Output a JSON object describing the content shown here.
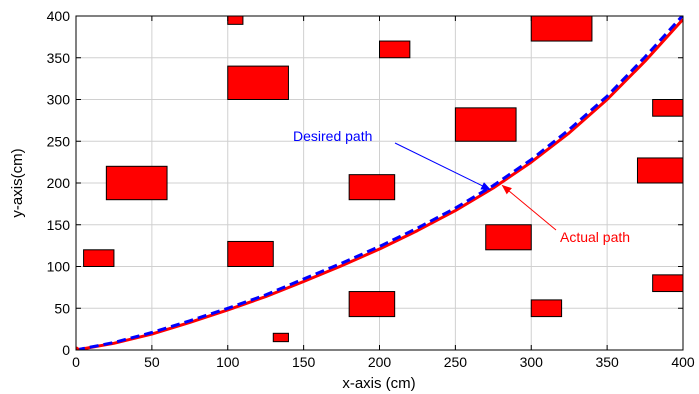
{
  "chart_data": {
    "type": "line",
    "title": "",
    "xlabel": "x-axis (cm)",
    "ylabel": "y-axis(cm)",
    "xlim": [
      0,
      400
    ],
    "ylim": [
      0,
      400
    ],
    "grid": true,
    "xticks": [
      0,
      50,
      100,
      150,
      200,
      250,
      300,
      350,
      400
    ],
    "yticks": [
      0,
      50,
      100,
      150,
      200,
      250,
      300,
      350,
      400
    ],
    "xtick_labels": [
      "0",
      "50",
      "100",
      "150",
      "200",
      "250",
      "300",
      "350",
      "400"
    ],
    "ytick_labels": [
      "0",
      "50",
      "100",
      "150",
      "200",
      "250",
      "300",
      "350",
      "400"
    ],
    "series": [
      {
        "name": "Desired path",
        "color": "#0000ff",
        "style": "dashed",
        "x": [
          0,
          25,
          50,
          75,
          100,
          125,
          150,
          175,
          200,
          225,
          250,
          275,
          300,
          325,
          350,
          375,
          400
        ],
        "y": [
          0,
          9,
          21,
          35,
          50,
          66,
          85,
          104,
          124,
          146,
          170,
          197,
          228,
          264,
          304,
          351,
          401
        ]
      },
      {
        "name": "Actual path",
        "color": "#ff0000",
        "style": "solid",
        "x": [
          0,
          25,
          50,
          75,
          100,
          125,
          150,
          175,
          200,
          225,
          250,
          275,
          300,
          325,
          350,
          375,
          400
        ],
        "y": [
          0,
          8,
          19,
          33,
          48,
          64,
          82,
          101,
          121,
          143,
          167,
          194,
          225,
          260,
          300,
          346,
          396
        ]
      }
    ],
    "obstacles": [
      {
        "x": [
          100,
          110
        ],
        "y": [
          390,
          400
        ]
      },
      {
        "x": [
          300,
          340
        ],
        "y": [
          370,
          400
        ]
      },
      {
        "x": [
          200,
          220
        ],
        "y": [
          350,
          370
        ]
      },
      {
        "x": [
          100,
          140
        ],
        "y": [
          300,
          340
        ]
      },
      {
        "x": [
          380,
          400
        ],
        "y": [
          280,
          300
        ]
      },
      {
        "x": [
          250,
          290
        ],
        "y": [
          250,
          290
        ]
      },
      {
        "x": [
          20,
          60
        ],
        "y": [
          180,
          220
        ]
      },
      {
        "x": [
          180,
          210
        ],
        "y": [
          180,
          210
        ]
      },
      {
        "x": [
          370,
          400
        ],
        "y": [
          200,
          230
        ]
      },
      {
        "x": [
          270,
          300
        ],
        "y": [
          120,
          150
        ]
      },
      {
        "x": [
          5,
          25
        ],
        "y": [
          100,
          120
        ]
      },
      {
        "x": [
          100,
          130
        ],
        "y": [
          100,
          130
        ]
      },
      {
        "x": [
          380,
          400
        ],
        "y": [
          70,
          90
        ]
      },
      {
        "x": [
          180,
          210
        ],
        "y": [
          40,
          70
        ]
      },
      {
        "x": [
          300,
          320
        ],
        "y": [
          40,
          60
        ]
      },
      {
        "x": [
          130,
          140
        ],
        "y": [
          10,
          20
        ]
      }
    ],
    "obstacle_color": "#ff0000",
    "annotations": [
      {
        "text": "Desired path",
        "color": "#0000ff",
        "arrow_to": [
          273,
          192
        ]
      },
      {
        "text": "Actual path",
        "color": "#ff0000",
        "arrow_to": [
          281,
          197
        ]
      }
    ]
  }
}
